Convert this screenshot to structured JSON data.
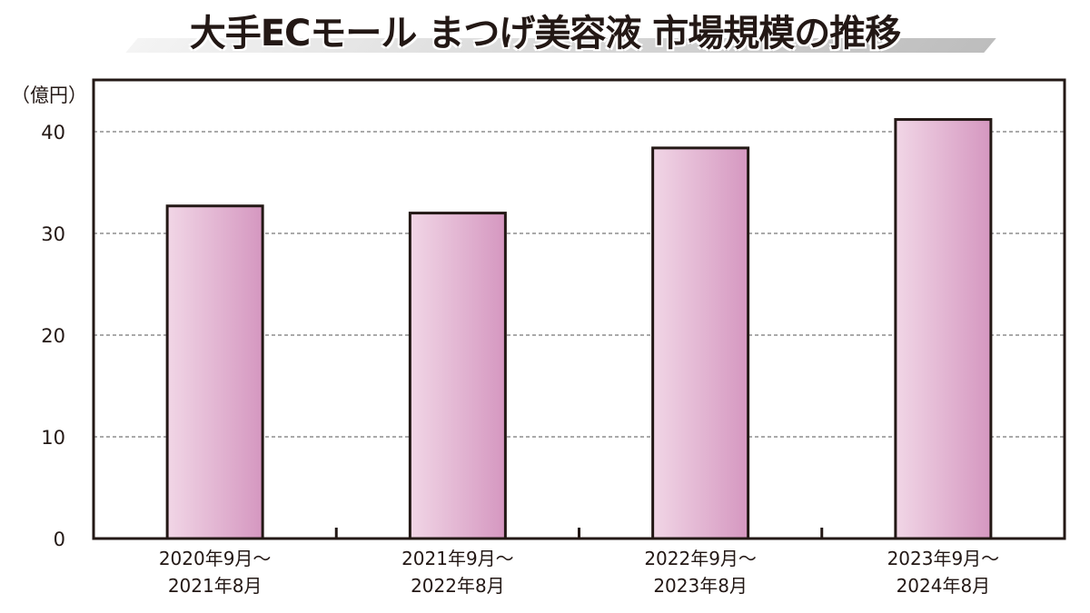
{
  "chart_data": {
    "type": "bar",
    "title": "大手ECモール まつげ美容液 市場規模の推移",
    "ylabel": "（億円）",
    "xlabel": "",
    "categories": [
      [
        "2020年9月～",
        "2021年8月"
      ],
      [
        "2021年9月～",
        "2022年8月"
      ],
      [
        "2022年9月～",
        "2023年8月"
      ],
      [
        "2023年9月～",
        "2024年8月"
      ]
    ],
    "values": [
      32.7,
      32.0,
      38.4,
      41.2
    ],
    "ylim": [
      0,
      45
    ],
    "yticks": [
      "0",
      "10",
      "20",
      "30",
      "40"
    ],
    "grid": true,
    "legend": "none",
    "colors": {
      "bar_light": "#f1d6e6",
      "bar_dark": "#d597c0",
      "outline": "#231815"
    }
  }
}
